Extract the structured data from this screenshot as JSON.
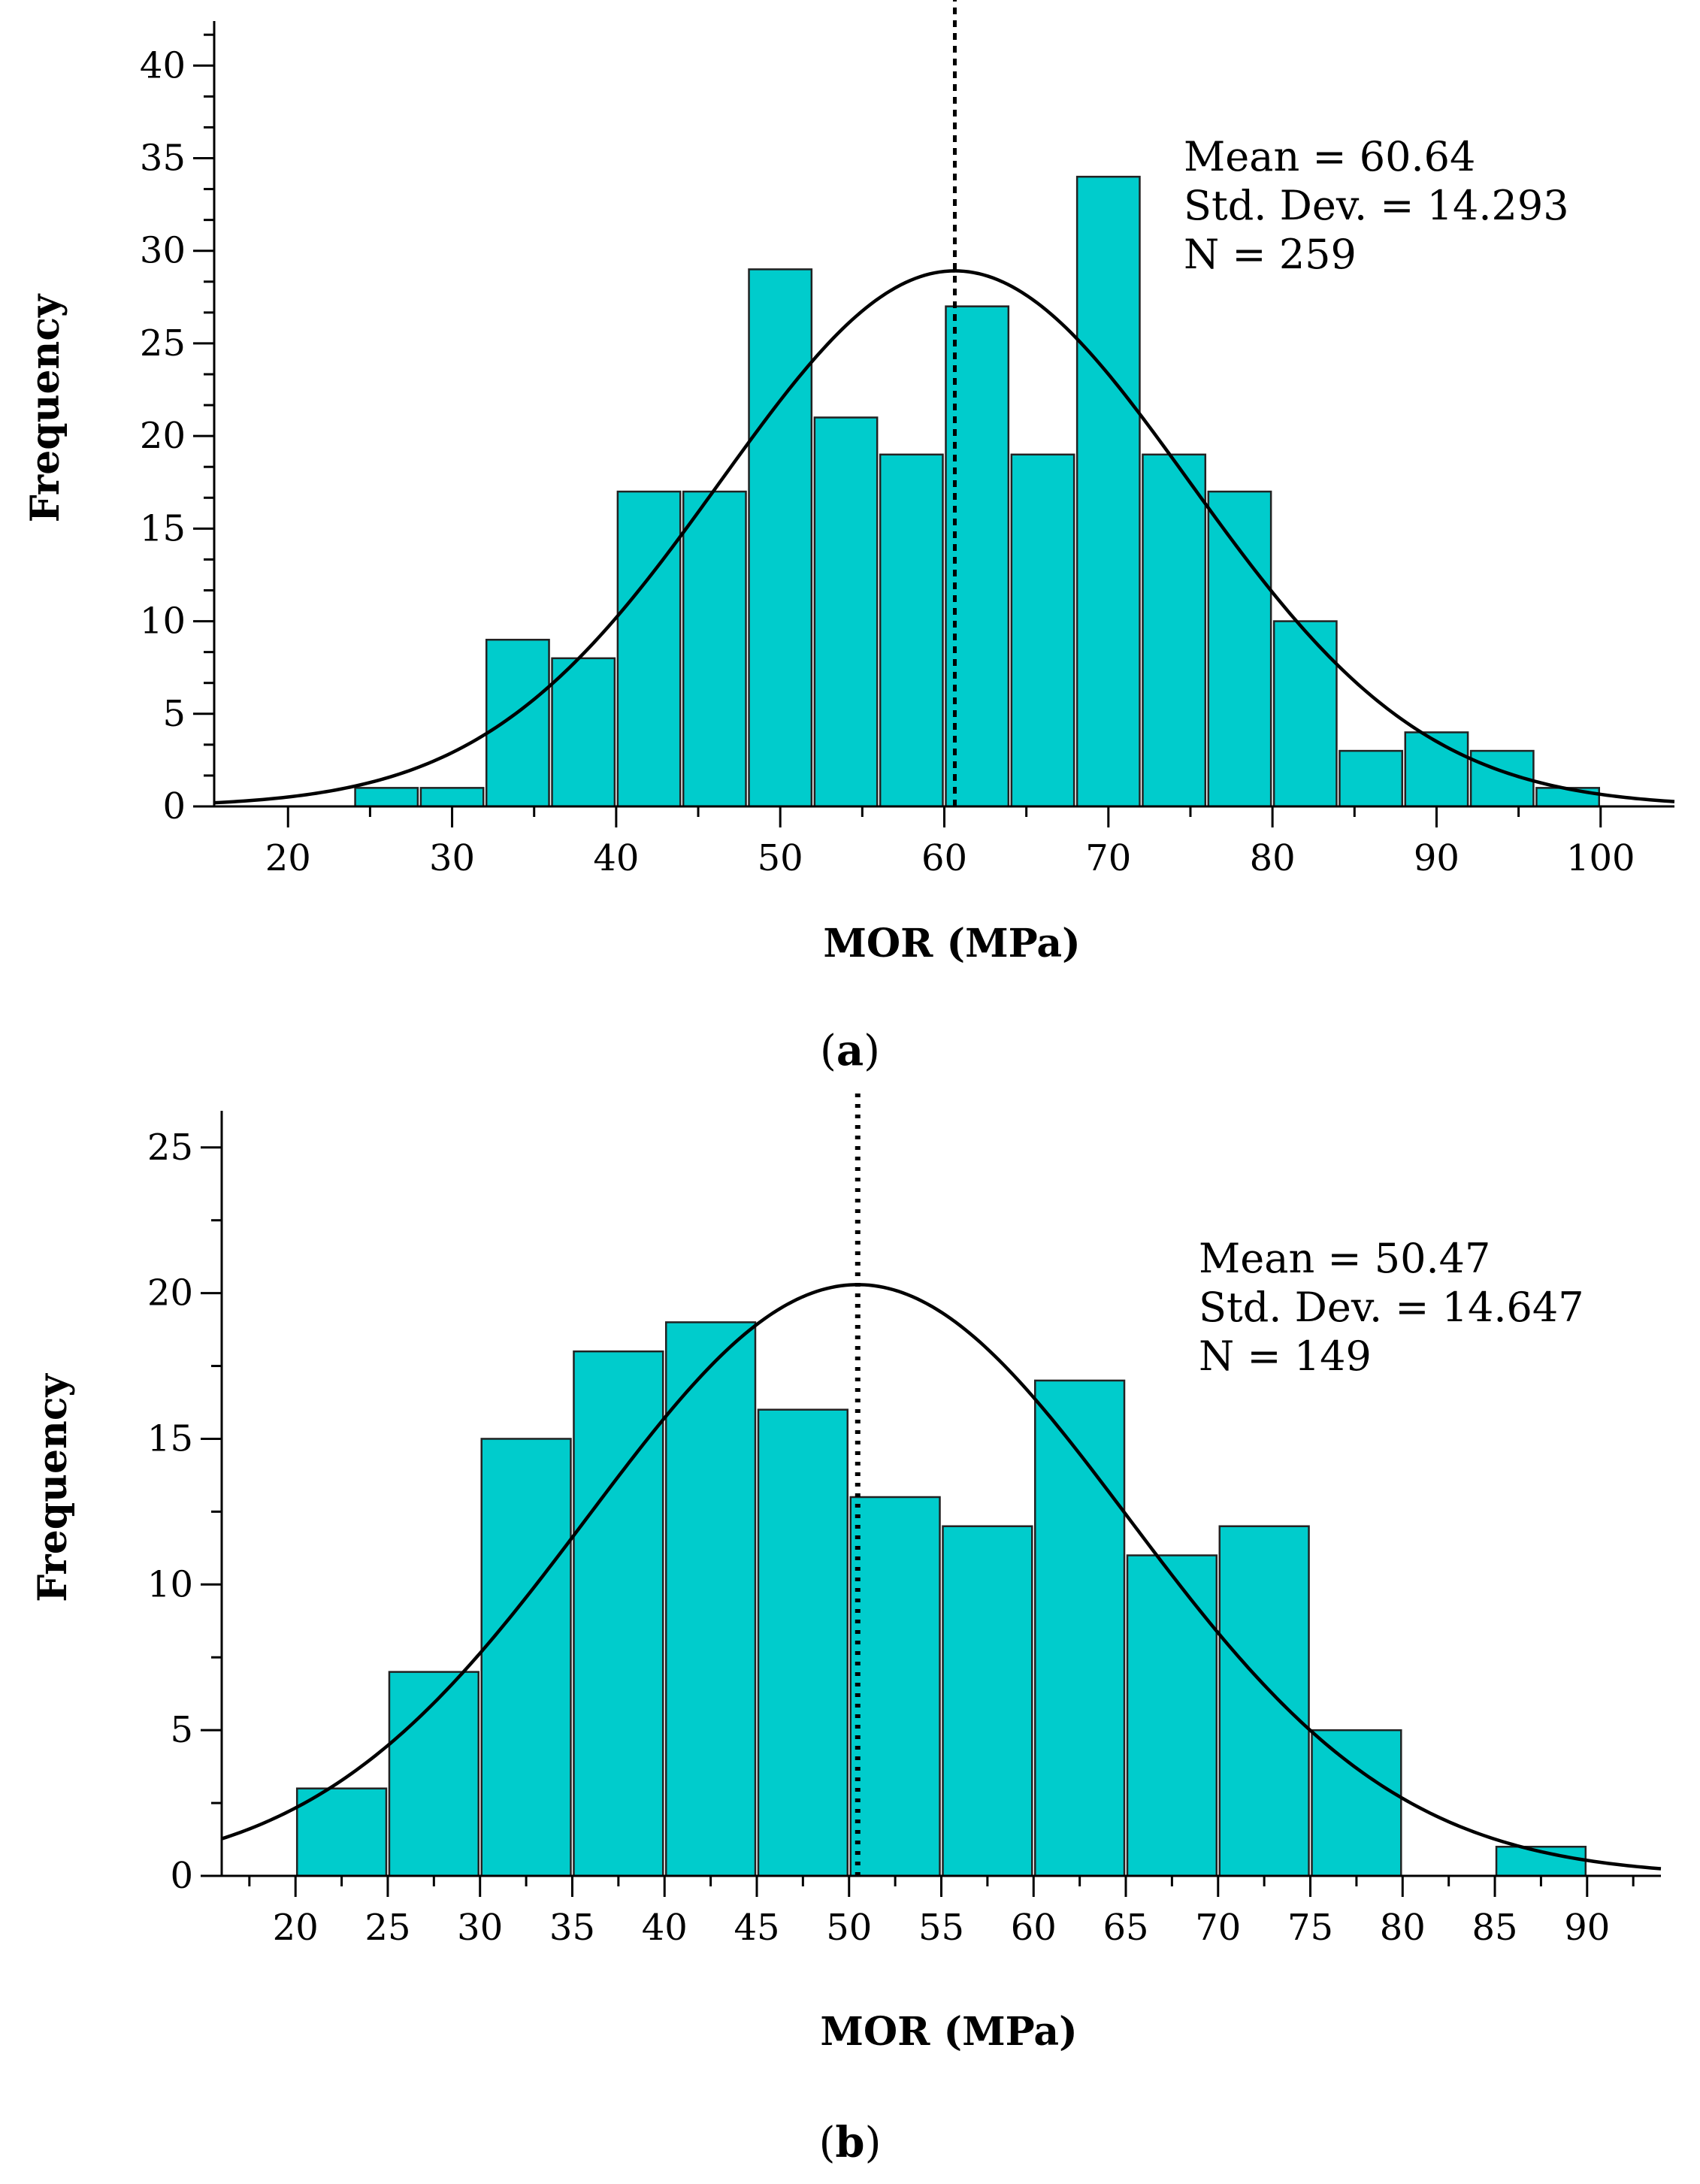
{
  "chart_data": [
    {
      "type": "bar",
      "panel": "a",
      "xlabel": "MOR (MPa)",
      "ylabel": "Frequency",
      "xlim": [
        15.5,
        104.5
      ],
      "ylim": [
        0,
        42
      ],
      "xticks": [
        20,
        30,
        40,
        50,
        60,
        70,
        80,
        90,
        100
      ],
      "yticks": [
        0,
        5,
        10,
        15,
        20,
        25,
        30,
        35,
        40
      ],
      "bin_width": 4,
      "bins": [
        {
          "start": 24,
          "end": 28,
          "count": 1
        },
        {
          "start": 28,
          "end": 32,
          "count": 1
        },
        {
          "start": 32,
          "end": 36,
          "count": 9
        },
        {
          "start": 36,
          "end": 40,
          "count": 8
        },
        {
          "start": 40,
          "end": 44,
          "count": 17
        },
        {
          "start": 44,
          "end": 48,
          "count": 17
        },
        {
          "start": 48,
          "end": 52,
          "count": 29
        },
        {
          "start": 52,
          "end": 56,
          "count": 21
        },
        {
          "start": 56,
          "end": 60,
          "count": 19
        },
        {
          "start": 60,
          "end": 64,
          "count": 27
        },
        {
          "start": 64,
          "end": 68,
          "count": 19
        },
        {
          "start": 68,
          "end": 72,
          "count": 34
        },
        {
          "start": 72,
          "end": 76,
          "count": 19
        },
        {
          "start": 76,
          "end": 80,
          "count": 17
        },
        {
          "start": 80,
          "end": 84,
          "count": 10
        },
        {
          "start": 84,
          "end": 88,
          "count": 3
        },
        {
          "start": 88,
          "end": 92,
          "count": 4
        },
        {
          "start": 92,
          "end": 96,
          "count": 3
        },
        {
          "start": 96,
          "end": 100,
          "count": 1
        }
      ],
      "normal_curve": {
        "mean": 60.64,
        "std": 14.293,
        "n": 259
      },
      "mean_line": 60.64,
      "stats": [
        "Mean = 60.64",
        "Std. Dev. = 14.293",
        "N = 259"
      ],
      "bar_color": "#00CCCC",
      "grid": false
    },
    {
      "type": "bar",
      "panel": "b",
      "xlabel": "MOR (MPa)",
      "ylabel": "Frequency",
      "xlim": [
        16,
        94
      ],
      "ylim": [
        0,
        26
      ],
      "xticks": [
        20,
        25,
        30,
        35,
        40,
        45,
        50,
        55,
        60,
        65,
        70,
        75,
        80,
        85,
        90
      ],
      "yticks": [
        0,
        5,
        10,
        15,
        20,
        25
      ],
      "bin_width": 5,
      "bins": [
        {
          "start": 20,
          "end": 25,
          "count": 3
        },
        {
          "start": 25,
          "end": 30,
          "count": 7
        },
        {
          "start": 30,
          "end": 35,
          "count": 15
        },
        {
          "start": 35,
          "end": 40,
          "count": 18
        },
        {
          "start": 40,
          "end": 45,
          "count": 19
        },
        {
          "start": 45,
          "end": 50,
          "count": 16
        },
        {
          "start": 50,
          "end": 55,
          "count": 13
        },
        {
          "start": 55,
          "end": 60,
          "count": 12
        },
        {
          "start": 60,
          "end": 65,
          "count": 17
        },
        {
          "start": 65,
          "end": 70,
          "count": 11
        },
        {
          "start": 70,
          "end": 75,
          "count": 12
        },
        {
          "start": 75,
          "end": 80,
          "count": 5
        },
        {
          "start": 85,
          "end": 90,
          "count": 1
        }
      ],
      "normal_curve": {
        "mean": 50.47,
        "std": 14.647,
        "n": 149
      },
      "mean_line": 50.47,
      "stats": [
        "Mean = 50.47",
        "Std. Dev. = 14.647",
        "N = 149"
      ],
      "bar_color": "#00CCCC",
      "grid": false
    }
  ],
  "panel_labels": {
    "a": "a",
    "b": "b"
  }
}
